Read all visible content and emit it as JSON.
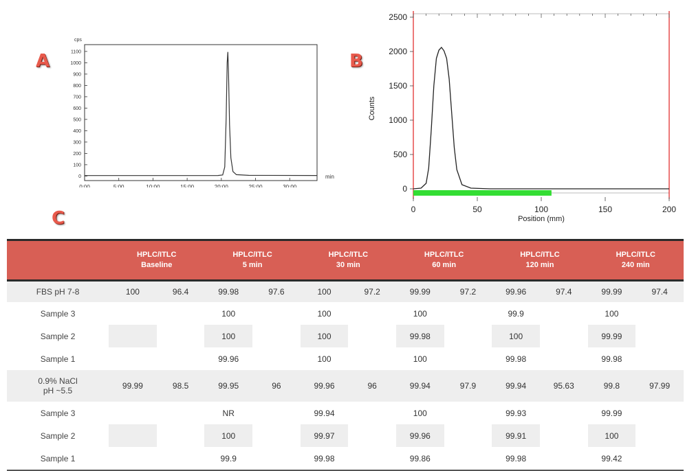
{
  "panels": {
    "a": "A",
    "b": "B",
    "c": "C"
  },
  "chart_data": [
    {
      "type": "line",
      "panel": "A",
      "ylabel": "cps",
      "xlabel": "min",
      "x_ticks": [
        "0:00",
        "5:00",
        "10:00",
        "15:00",
        "20:00",
        "25:00",
        "30:00"
      ],
      "y_ticks": [
        0,
        100,
        200,
        300,
        400,
        500,
        600,
        700,
        800,
        900,
        1000,
        1100
      ],
      "xlim": [
        0,
        34
      ],
      "ylim": [
        -40,
        1160
      ],
      "grid": false,
      "series": [
        {
          "x": [
            0,
            10,
            19.5,
            20.2,
            20.5,
            20.7,
            20.85,
            20.95,
            21.05,
            21.2,
            21.4,
            21.7,
            22.2,
            24,
            34
          ],
          "y": [
            4,
            4,
            5,
            10,
            80,
            500,
            1000,
            1095,
            900,
            450,
            160,
            40,
            12,
            6,
            5
          ]
        }
      ]
    },
    {
      "type": "line",
      "panel": "B",
      "xlabel": "Position (mm)",
      "ylabel": "Counts",
      "x_ticks": [
        0,
        50,
        100,
        150,
        200
      ],
      "y_ticks": [
        0,
        500,
        1000,
        1500,
        2000,
        2500
      ],
      "xlim": [
        0,
        200
      ],
      "ylim": [
        -60,
        2550
      ],
      "grid": false,
      "colors": {
        "markers": "#e02020",
        "bar": "#33dd33",
        "line": "#222222"
      },
      "series": [
        {
          "x": [
            0,
            6,
            10,
            12,
            14,
            16,
            18,
            20,
            22,
            24,
            26,
            28,
            30,
            32,
            34,
            38,
            45,
            60,
            100,
            200
          ],
          "y": [
            0,
            10,
            80,
            300,
            850,
            1500,
            1900,
            2020,
            2060,
            2010,
            1900,
            1600,
            1100,
            600,
            280,
            60,
            10,
            0,
            0,
            0
          ]
        }
      ],
      "green_band": [
        0,
        108
      ]
    },
    {
      "type": "table",
      "panel": "C",
      "header": [
        "",
        "HPLC/ITLC\nBaseline",
        "HPLC/ITLC\n5 min",
        "HPLC/ITLC\n30 min",
        "HPLC/ITLC\n60 min",
        "HPLC/ITLC\n120 min",
        "HPLC/ITLC\n240 min"
      ],
      "rows": [
        {
          "label": "FBS pH 7-8",
          "cells": [
            "100",
            "96.4",
            "99.98",
            "97.6",
            "100",
            "97.2",
            "99.99",
            "97.2",
            "99.96",
            "97.4",
            "99.99",
            "97.4"
          ]
        },
        {
          "label": "Sample 3",
          "cells": [
            "",
            "",
            "100",
            "",
            "100",
            "",
            "100",
            "",
            "99.9",
            "",
            "100",
            ""
          ]
        },
        {
          "label": "Sample 2",
          "cells": [
            "",
            "",
            "100",
            "",
            "100",
            "",
            "99.98",
            "",
            "100",
            "",
            "99.99",
            ""
          ]
        },
        {
          "label": "Sample 1",
          "cells": [
            "",
            "",
            "99.96",
            "",
            "100",
            "",
            "100",
            "",
            "99.98",
            "",
            "99.98",
            ""
          ]
        },
        {
          "label": "0.9% NaCl\npH ~5.5",
          "cells": [
            "99.99",
            "98.5",
            "99.95",
            "96",
            "99.96",
            "96",
            "99.94",
            "97.9",
            "99.94",
            "95.63",
            "99.8",
            "97.99"
          ]
        },
        {
          "label": "Sample 3",
          "cells": [
            "",
            "",
            "NR",
            "",
            "99.94",
            "",
            "100",
            "",
            "99.93",
            "",
            "99.99",
            ""
          ]
        },
        {
          "label": "Sample 2",
          "cells": [
            "",
            "",
            "100",
            "",
            "99.97",
            "",
            "99.96",
            "",
            "99.91",
            "",
            "100",
            ""
          ]
        },
        {
          "label": "Sample 1",
          "cells": [
            "",
            "",
            "99.9",
            "",
            "99.98",
            "",
            "99.86",
            "",
            "99.98",
            "",
            "99.42",
            ""
          ]
        }
      ]
    }
  ]
}
